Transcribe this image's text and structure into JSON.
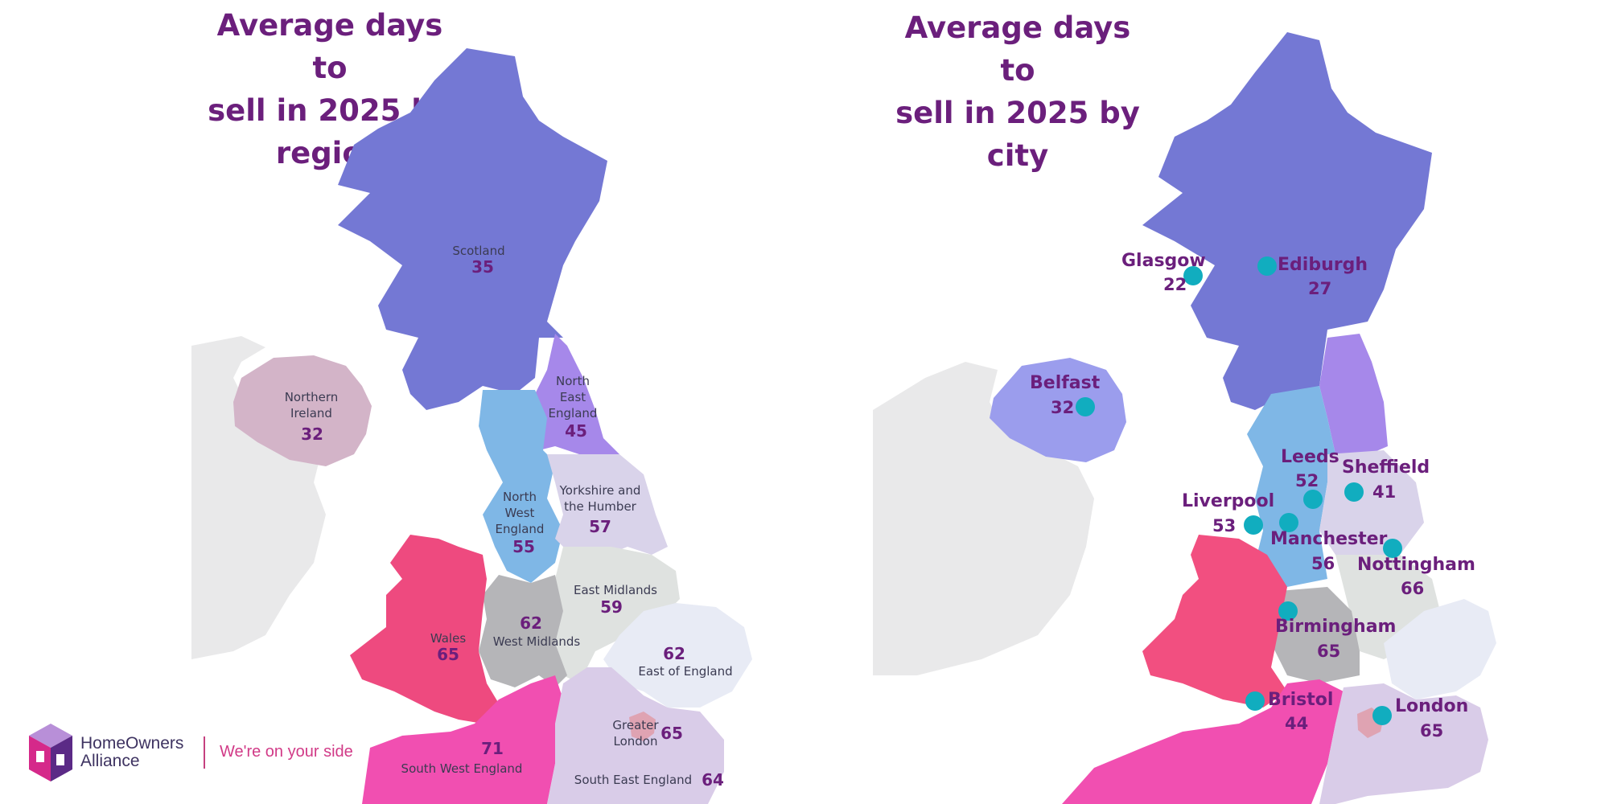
{
  "left_map": {
    "title": "Average days to sell in 2025 by region",
    "title_lines": [
      "Average days to",
      "sell in 2025 by",
      "region"
    ],
    "regions": [
      {
        "name": "Scotland",
        "value": "35",
        "color": "#7478d4"
      },
      {
        "name": "Northern Ireland",
        "name_lines": [
          "Northern",
          "Ireland"
        ],
        "value": "32",
        "color": "#d3b4c8"
      },
      {
        "name": "North East England",
        "name_lines": [
          "North",
          "East",
          "England"
        ],
        "value": "45",
        "color": "#a688ea"
      },
      {
        "name": "North West England",
        "name_lines": [
          "North",
          "West",
          "England"
        ],
        "value": "55",
        "color": "#7fb7e6"
      },
      {
        "name": "Yorkshire and the Humber",
        "name_lines": [
          "Yorkshire and",
          "the Humber"
        ],
        "value": "57",
        "color": "#d9d3ea"
      },
      {
        "name": "East Midlands",
        "value": "59",
        "color": "#dfe2e0"
      },
      {
        "name": "West Midlands",
        "value": "62",
        "color": "#b5b5b8"
      },
      {
        "name": "Wales",
        "value": "65",
        "color": "#ee4a7f"
      },
      {
        "name": "East of England",
        "value": "62",
        "color": "#e8ebf5"
      },
      {
        "name": "Greater London",
        "name_lines": [
          "Greater",
          "London"
        ],
        "value": "65",
        "color": "#dfa3b2"
      },
      {
        "name": "South West England",
        "value": "71",
        "color": "#f14fb1"
      },
      {
        "name": "South East England",
        "value": "64",
        "color": "#d9cce8"
      }
    ]
  },
  "right_map": {
    "title": "Average days to sell in 2025 by city",
    "title_lines": [
      "Average days to",
      "sell in 2025 by",
      "city"
    ],
    "cities": [
      {
        "name": "Glasgow",
        "value": "22"
      },
      {
        "name": "Ediburgh",
        "value": "27"
      },
      {
        "name": "Belfast",
        "value": "32"
      },
      {
        "name": "Leeds",
        "value": "52"
      },
      {
        "name": "Sheffield",
        "value": "41"
      },
      {
        "name": "Liverpool",
        "value": "53"
      },
      {
        "name": "Manchester",
        "value": "56"
      },
      {
        "name": "Nottingham",
        "value": "66"
      },
      {
        "name": "Birmingham",
        "value": "65"
      },
      {
        "name": "Bristol",
        "value": "44"
      },
      {
        "name": "London",
        "value": "65"
      }
    ],
    "dot_color": "#11adbf"
  },
  "brand": {
    "name_line1": "HomeOwners",
    "name_line2": "Alliance",
    "tagline": "We're on your side"
  },
  "colors": {
    "title": "#6b1f7c",
    "ireland": "#e9e9ea"
  }
}
